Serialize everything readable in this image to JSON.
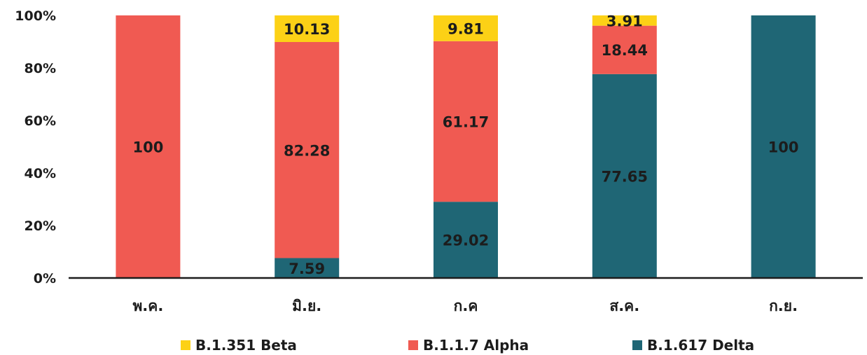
{
  "chart_data": {
    "type": "bar",
    "stacked": true,
    "categories": [
      "พ.ค.",
      "มิ.ย.",
      "ก.ค",
      "ส.ค.",
      "ก.ย."
    ],
    "series": [
      {
        "name": "B.1.617 Delta",
        "color": "#1f6675",
        "values": [
          0,
          7.59,
          29.02,
          77.65,
          100
        ],
        "labels": [
          "",
          "7.59",
          "29.02",
          "77.65",
          "100"
        ]
      },
      {
        "name": "B.1.1.7 Alpha",
        "color": "#f05a52",
        "values": [
          100,
          82.28,
          61.17,
          18.44,
          0
        ],
        "labels": [
          "100",
          "82.28",
          "61.17",
          "18.44",
          ""
        ]
      },
      {
        "name": "B.1.351 Beta",
        "color": "#fcd116",
        "values": [
          0,
          10.13,
          9.81,
          3.91,
          0
        ],
        "labels": [
          "",
          "10.13",
          "9.81",
          "3.91",
          ""
        ]
      }
    ],
    "legend_order": [
      "B.1.351 Beta",
      "B.1.1.7 Alpha",
      "B.1.617 Delta"
    ],
    "yticks": [
      "0%",
      "20%",
      "40%",
      "60%",
      "80%",
      "100%"
    ],
    "ylim": [
      0,
      100
    ],
    "grid": false,
    "legend_position": "bottom",
    "title": "",
    "xlabel": "",
    "ylabel": ""
  }
}
